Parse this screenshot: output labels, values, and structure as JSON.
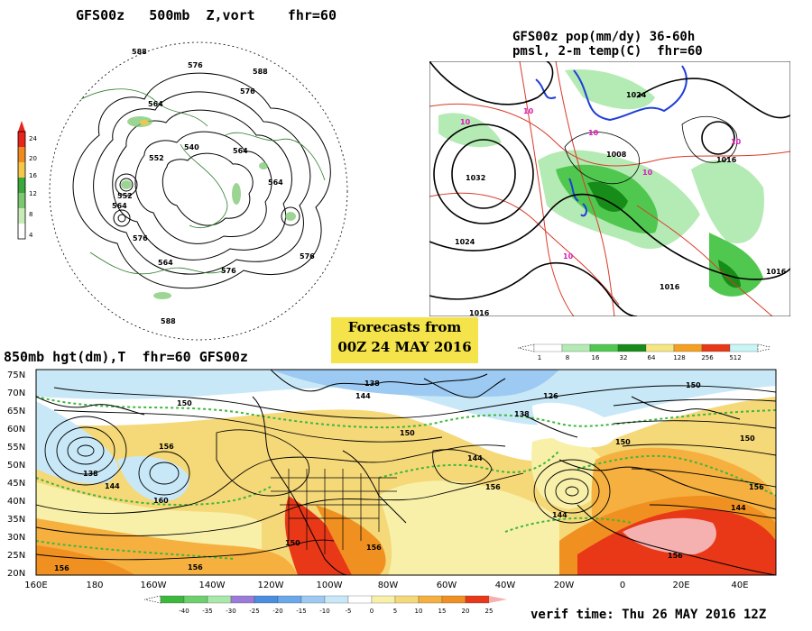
{
  "polar_panel": {
    "title": "GFS00z   500mb  Z,vort    fhr=60",
    "contour_labels": [
      "588",
      "576",
      "588",
      "564",
      "576",
      "552",
      "540",
      "564",
      "552",
      "564",
      "552",
      "564",
      "576",
      "564",
      "576",
      "564",
      "576",
      "588"
    ],
    "colorbar": {
      "ticks": [
        "24",
        "20",
        "16",
        "12",
        "8",
        "4"
      ],
      "colors": [
        "#e8251c",
        "#f08a1e",
        "#f5c84a",
        "#3aa83a",
        "#7cc870",
        "#c8ecb8"
      ]
    }
  },
  "pop_panel": {
    "title_line1": "GFS00z pop(mm/dy) 36-60h",
    "title_line2": "pmsl, 2-m temp(C)  fhr=60",
    "contour_labels": [
      "1032",
      "1024",
      "1016",
      "1016",
      "1016",
      "1024",
      "1016",
      "1008"
    ],
    "temp_labels": [
      "10",
      "10",
      "10",
      "10",
      "10",
      "10"
    ],
    "colorbar": {
      "ticks": [
        "1",
        "8",
        "16",
        "32",
        "64",
        "128",
        "256",
        "512"
      ],
      "colors": [
        "#ffffff",
        "#b4eab4",
        "#50c850",
        "#188c18",
        "#f5e682",
        "#f5a020",
        "#e83818",
        "#c8f5f5"
      ]
    }
  },
  "forecast_box": {
    "line1": "Forecasts from",
    "line2": "00Z 24 MAY 2016"
  },
  "main_panel": {
    "title": "850mb hgt(dm),T  fhr=60 GFS00z",
    "y_axis_labels": [
      "75N",
      "70N",
      "65N",
      "60N",
      "55N",
      "50N",
      "45N",
      "40N",
      "35N",
      "30N",
      "25N",
      "20N"
    ],
    "x_axis_labels": [
      "160E",
      "180",
      "160W",
      "140W",
      "120W",
      "100W",
      "80W",
      "60W",
      "40W",
      "20W",
      "0",
      "20E",
      "40E"
    ],
    "contour_labels": [
      "138",
      "144",
      "150",
      "156",
      "160",
      "156",
      "144",
      "150",
      "144",
      "156",
      "150",
      "144",
      "156",
      "156",
      "156",
      "150",
      "138",
      "126",
      "150",
      "144",
      "150",
      "144",
      "156"
    ],
    "colorbar": {
      "ticks": [
        "-40",
        "-35",
        "-30",
        "-25",
        "-20",
        "-15",
        "-10",
        "-5",
        "0",
        "5",
        "10",
        "15",
        "20",
        "25"
      ],
      "colors": [
        "#3cb83c",
        "#6cd06c",
        "#a8e8a8",
        "#9b7ad8",
        "#4a8ee0",
        "#6aa8ec",
        "#9ccaf2",
        "#c8e8f8",
        "#ffffff",
        "#f8f0a8",
        "#f5d878",
        "#f5b040",
        "#f09020",
        "#e83818",
        "#f5b0b0"
      ]
    }
  },
  "verif_time": "verif time: Thu 26 MAY 2016 12Z"
}
